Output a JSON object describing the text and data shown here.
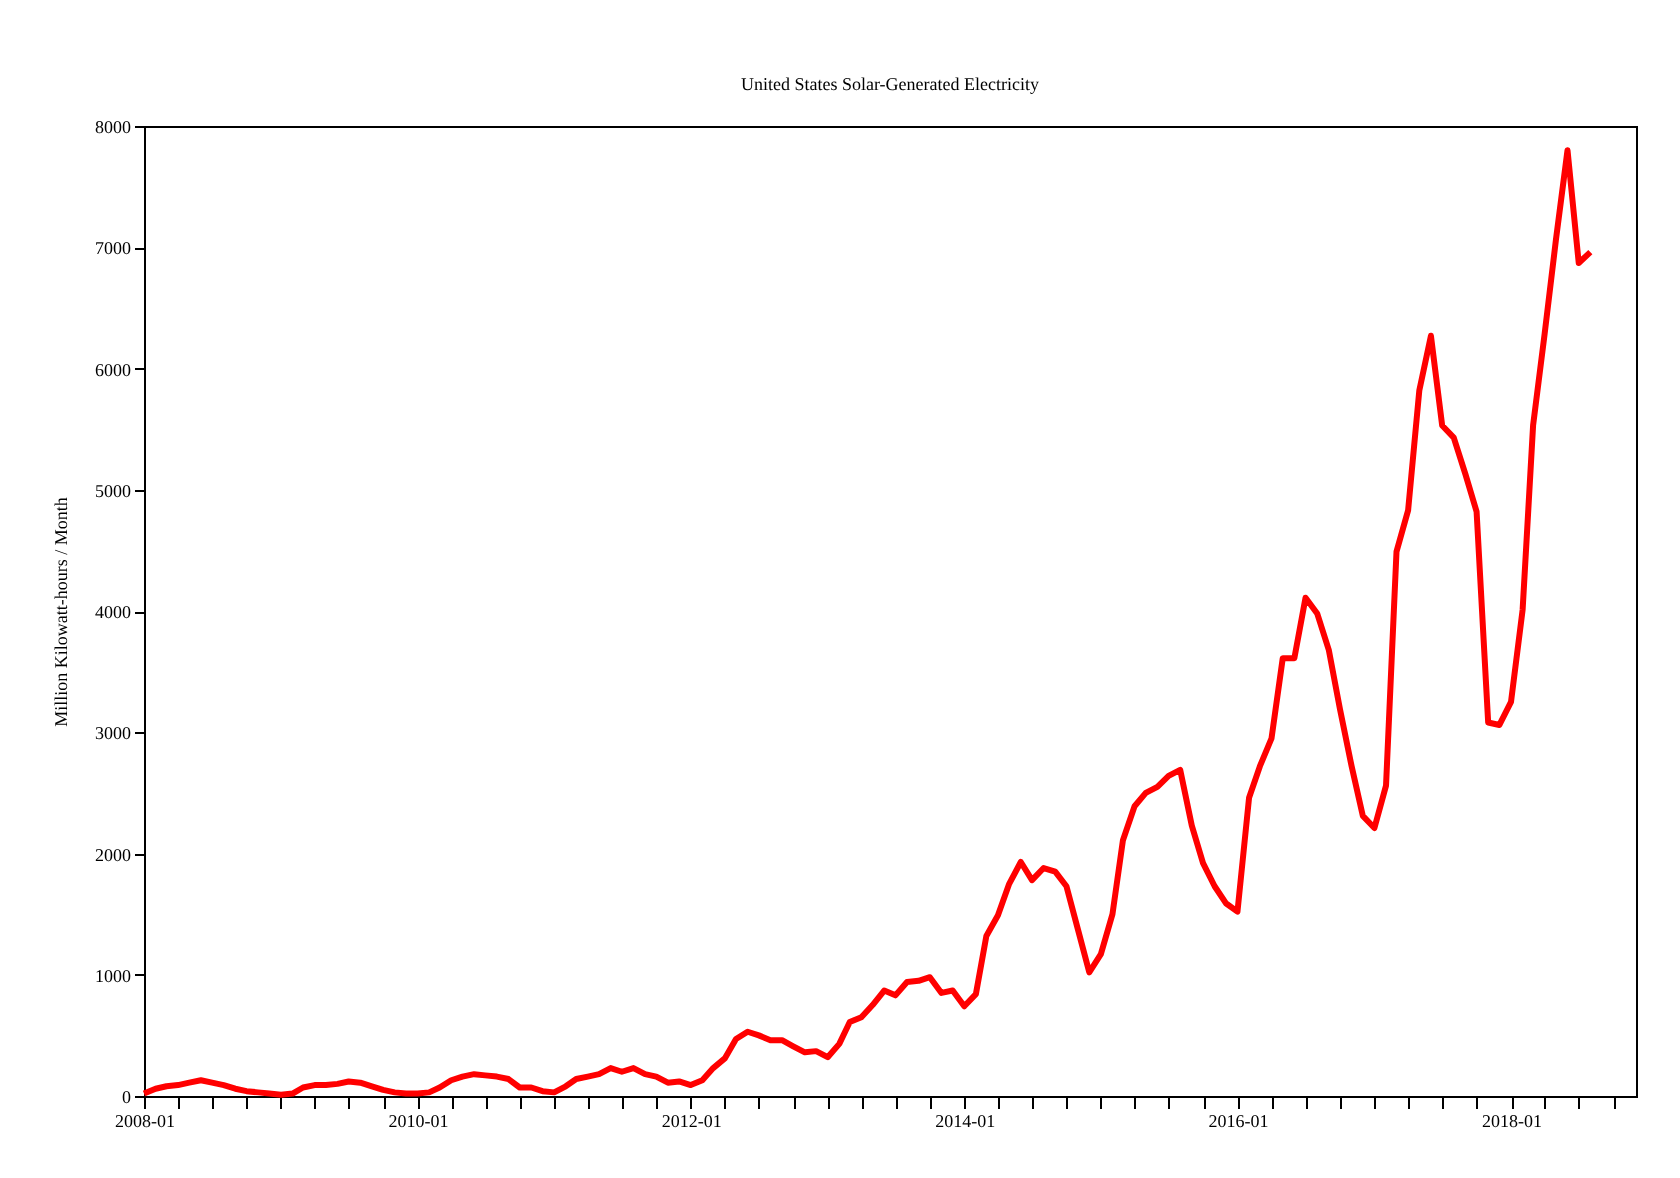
{
  "chart_data": {
    "type": "line",
    "title": "United States Solar-Generated Electricity",
    "ylabel": "Million Kilowatt-hours / Month",
    "x": [
      "2008-01",
      "2008-02",
      "2008-03",
      "2008-04",
      "2008-05",
      "2008-06",
      "2008-07",
      "2008-08",
      "2008-09",
      "2008-10",
      "2008-11",
      "2008-12",
      "2009-01",
      "2009-02",
      "2009-03",
      "2009-04",
      "2009-05",
      "2009-06",
      "2009-07",
      "2009-08",
      "2009-09",
      "2009-10",
      "2009-11",
      "2009-12",
      "2010-01",
      "2010-02",
      "2010-03",
      "2010-04",
      "2010-05",
      "2010-06",
      "2010-07",
      "2010-08",
      "2010-09",
      "2010-10",
      "2010-11",
      "2010-12",
      "2011-01",
      "2011-02",
      "2011-03",
      "2011-04",
      "2011-05",
      "2011-06",
      "2011-07",
      "2011-08",
      "2011-09",
      "2011-10",
      "2011-11",
      "2011-12",
      "2012-01",
      "2012-02",
      "2012-03",
      "2012-04",
      "2012-05",
      "2012-06",
      "2012-07",
      "2012-08",
      "2012-09",
      "2012-10",
      "2012-11",
      "2012-12",
      "2013-01",
      "2013-02",
      "2013-03",
      "2013-04",
      "2013-05",
      "2013-06",
      "2013-07",
      "2013-08",
      "2013-09",
      "2013-10",
      "2013-11",
      "2013-12",
      "2014-01",
      "2014-02",
      "2014-03",
      "2014-04",
      "2014-05",
      "2014-06",
      "2014-07",
      "2014-08",
      "2014-09",
      "2014-10",
      "2014-11",
      "2014-12",
      "2015-01",
      "2015-02",
      "2015-03",
      "2015-04",
      "2015-05",
      "2015-06",
      "2015-07",
      "2015-08",
      "2015-09",
      "2015-10",
      "2015-11",
      "2015-12",
      "2016-01",
      "2016-02",
      "2016-03",
      "2016-04",
      "2016-05",
      "2016-06",
      "2016-07",
      "2016-08",
      "2016-09",
      "2016-10",
      "2016-11",
      "2016-12",
      "2017-01",
      "2017-02",
      "2017-03",
      "2017-04",
      "2017-05",
      "2017-06",
      "2017-07",
      "2017-08",
      "2017-09",
      "2017-10",
      "2017-11",
      "2017-12",
      "2018-01",
      "2018-02",
      "2018-03",
      "2018-04",
      "2018-05",
      "2018-06",
      "2018-07",
      "2018-08"
    ],
    "series": [
      {
        "color": "#ff0000",
        "values": [
          20,
          60,
          80,
          90,
          110,
          130,
          110,
          90,
          60,
          40,
          30,
          20,
          10,
          20,
          70,
          90,
          90,
          100,
          120,
          110,
          80,
          50,
          30,
          20,
          20,
          30,
          70,
          130,
          160,
          180,
          170,
          160,
          140,
          70,
          70,
          40,
          30,
          80,
          140,
          160,
          180,
          230,
          200,
          230,
          180,
          160,
          110,
          120,
          90,
          130,
          230,
          310,
          470,
          530,
          500,
          460,
          460,
          410,
          360,
          370,
          320,
          430,
          610,
          650,
          750,
          870,
          830,
          940,
          950,
          980,
          850,
          870,
          740,
          840,
          1320,
          1490,
          1750,
          1930,
          1780,
          1880,
          1850,
          1730,
          1370,
          1020,
          1170,
          1500,
          2110,
          2390,
          2500,
          2550,
          2640,
          2690,
          2230,
          1920,
          1730,
          1590,
          1520,
          2460,
          2720,
          2950,
          3610,
          3610,
          4110,
          3980,
          3680,
          3190,
          2720,
          2310,
          2210,
          2560,
          4490,
          4830,
          5820,
          6270,
          5530,
          5430,
          5130,
          4820,
          3080,
          3060,
          3250,
          4010,
          5530,
          6290,
          7060,
          7800,
          6870,
          6960
        ]
      }
    ],
    "xlim": [
      "2008-01",
      "2018-12"
    ],
    "xticks": [
      "2008-01",
      {
        "value": "2008-04",
        "label": null
      },
      {
        "value": "2008-07",
        "label": null
      },
      {
        "value": "2008-10",
        "label": null
      },
      {
        "value": "2009-01",
        "label": null
      },
      {
        "value": "2009-04",
        "label": null
      },
      {
        "value": "2009-07",
        "label": null
      },
      {
        "value": "2009-10",
        "label": null
      },
      "2010-01",
      {
        "value": "2010-04",
        "label": null
      },
      {
        "value": "2010-07",
        "label": null
      },
      {
        "value": "2010-10",
        "label": null
      },
      {
        "value": "2011-01",
        "label": null
      },
      {
        "value": "2011-04",
        "label": null
      },
      {
        "value": "2011-07",
        "label": null
      },
      {
        "value": "2011-10",
        "label": null
      },
      "2012-01",
      {
        "value": "2012-04",
        "label": null
      },
      {
        "value": "2012-07",
        "label": null
      },
      {
        "value": "2012-10",
        "label": null
      },
      {
        "value": "2013-01",
        "label": null
      },
      {
        "value": "2013-04",
        "label": null
      },
      {
        "value": "2013-07",
        "label": null
      },
      {
        "value": "2013-10",
        "label": null
      },
      "2014-01",
      {
        "value": "2014-04",
        "label": null
      },
      {
        "value": "2014-07",
        "label": null
      },
      {
        "value": "2014-10",
        "label": null
      },
      {
        "value": "2015-01",
        "label": null
      },
      {
        "value": "2015-04",
        "label": null
      },
      {
        "value": "2015-07",
        "label": null
      },
      {
        "value": "2015-10",
        "label": null
      },
      "2016-01",
      {
        "value": "2016-04",
        "label": null
      },
      {
        "value": "2016-07",
        "label": null
      },
      {
        "value": "2016-10",
        "label": null
      },
      {
        "value": "2017-01",
        "label": null
      },
      {
        "value": "2017-04",
        "label": null
      },
      {
        "value": "2017-07",
        "label": null
      },
      {
        "value": "2017-10",
        "label": null
      },
      "2018-01",
      {
        "value": "2018-04",
        "label": null
      },
      {
        "value": "2018-07",
        "label": null
      },
      {
        "value": "2018-10",
        "label": null
      }
    ],
    "ylim": [
      0,
      8000
    ],
    "yticks": [
      0,
      1000,
      2000,
      3000,
      4000,
      5000,
      6000,
      7000,
      8000
    ],
    "grid": false,
    "legend": false,
    "marker": "none",
    "line_style": "solid"
  }
}
